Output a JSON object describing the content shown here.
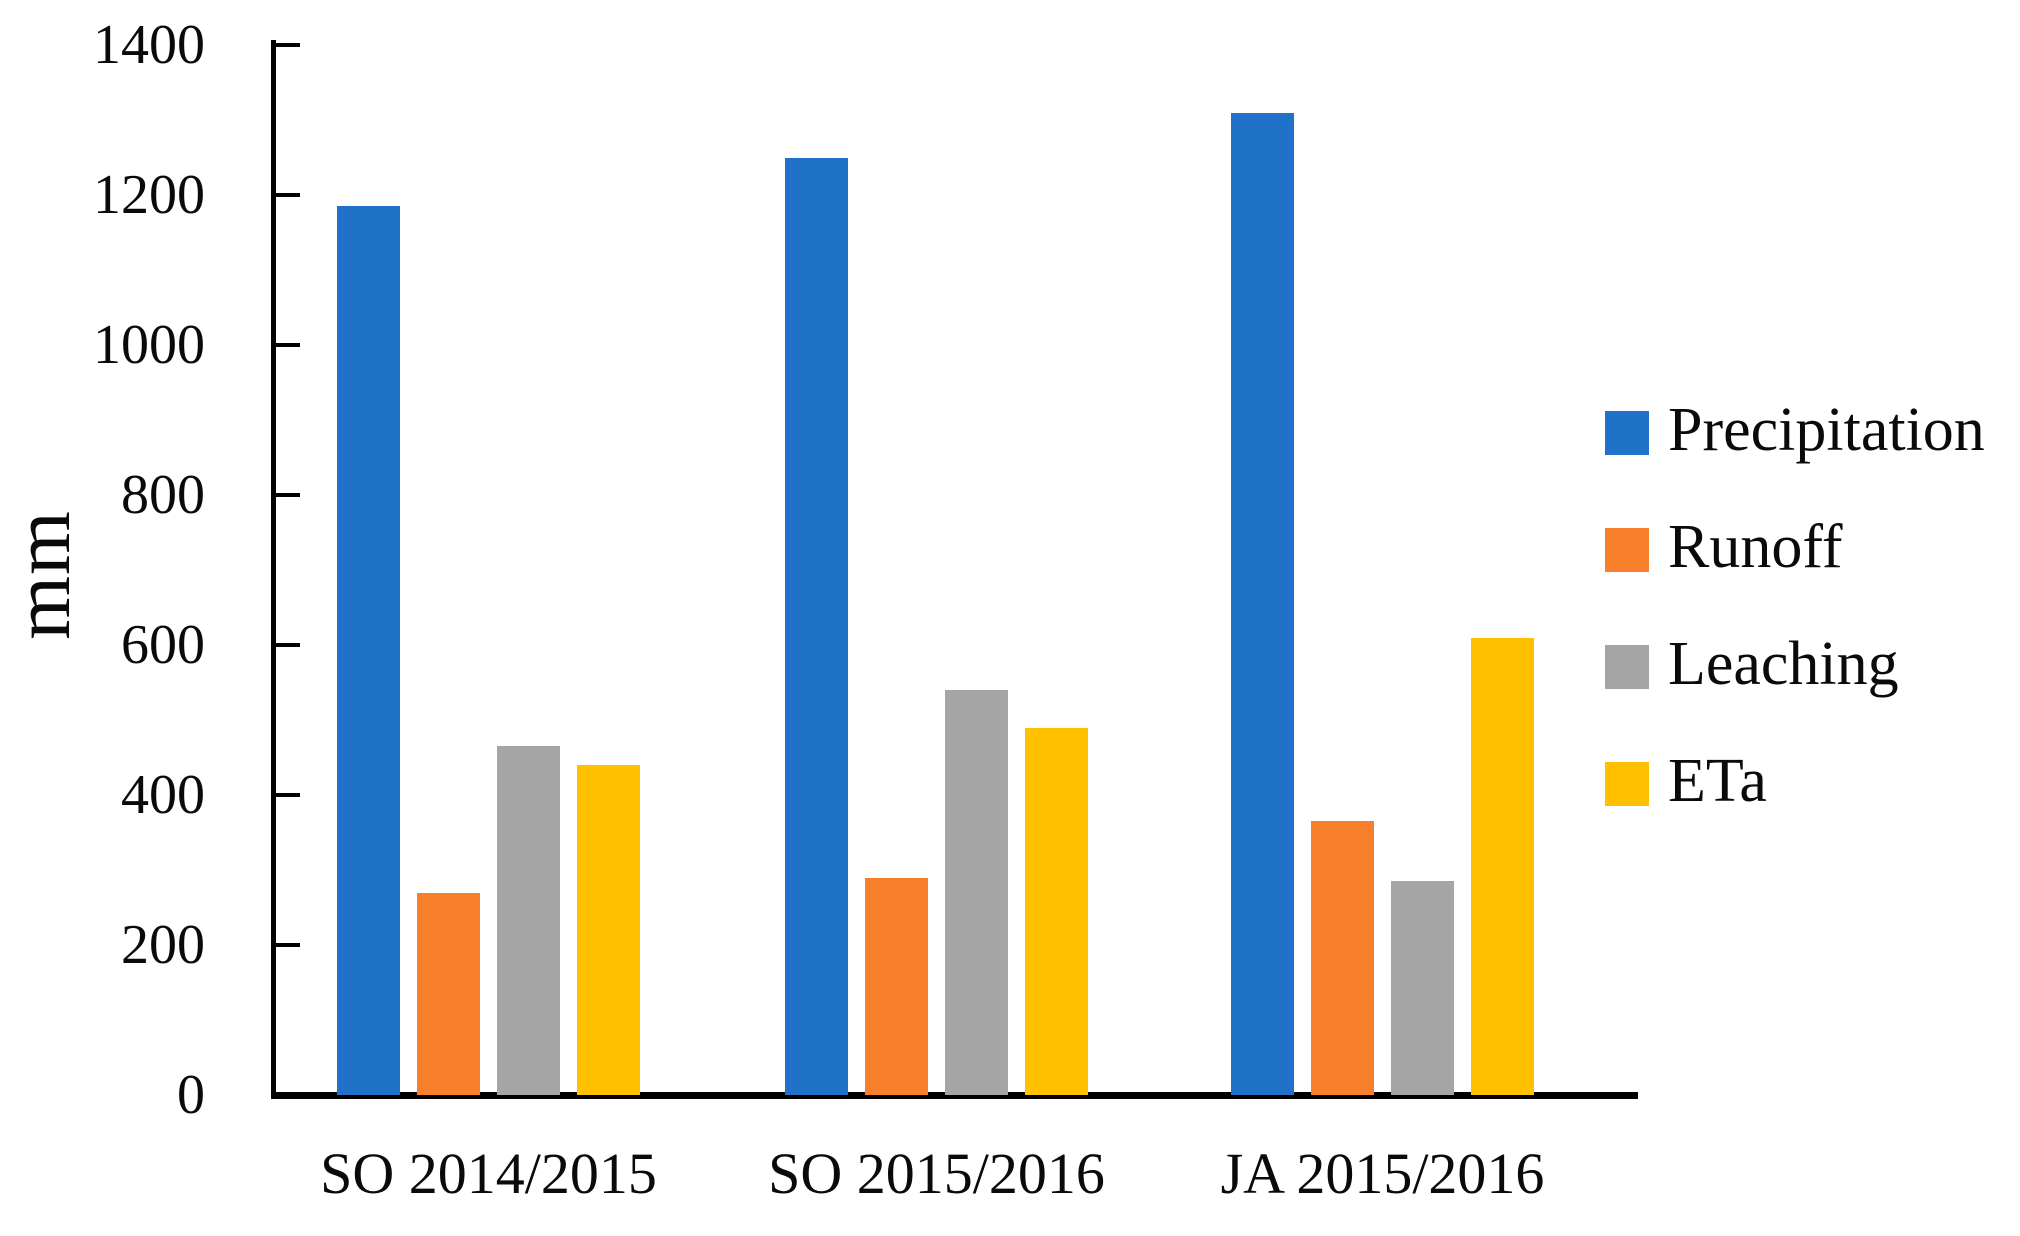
{
  "chart_data": {
    "type": "bar",
    "title": "",
    "xlabel": "",
    "ylabel": "mm",
    "categories": [
      "SO 2014/2015",
      "SO 2015/2016",
      "JA 2015/2016"
    ],
    "series": [
      {
        "name": "Precipitation",
        "color": "#1F72C8",
        "values": [
          1185,
          1250,
          1310
        ]
      },
      {
        "name": "Runoff",
        "color": "#F8802C",
        "values": [
          270,
          290,
          365
        ]
      },
      {
        "name": "Leaching",
        "color": "#A5A5A5",
        "values": [
          465,
          540,
          285
        ]
      },
      {
        "name": "ETa",
        "color": "#FFC000",
        "values": [
          440,
          490,
          610
        ]
      }
    ],
    "ylim": [
      0,
      1400
    ],
    "yticks": [
      0,
      200,
      400,
      600,
      800,
      1000,
      1200,
      1400
    ],
    "grid": false,
    "legend_position": "right",
    "axis_color": "#000000",
    "background_color": "#ffffff"
  }
}
